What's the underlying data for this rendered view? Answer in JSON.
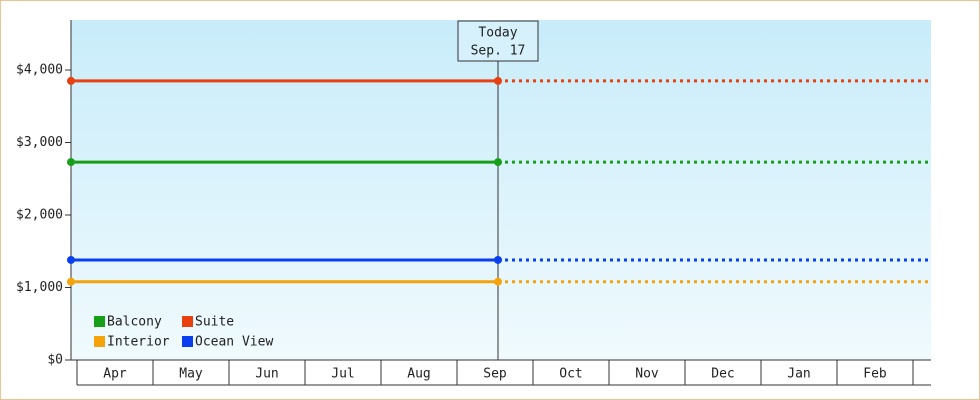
{
  "chart_data": {
    "type": "line",
    "categories": [
      "Apr",
      "May",
      "Jun",
      "Jul",
      "Aug",
      "Sep",
      "Oct",
      "Nov",
      "Dec",
      "Jan",
      "Feb"
    ],
    "today": {
      "label": "Today",
      "date": "Sep. 17"
    },
    "series": [
      {
        "name": "Balcony",
        "color": "#17a017",
        "value": 2730
      },
      {
        "name": "Suite",
        "color": "#e8400f",
        "value": 3850
      },
      {
        "name": "Interior",
        "color": "#f5a30b",
        "value": 1080
      },
      {
        "name": "Ocean View",
        "color": "#0a3ff0",
        "value": 1380
      }
    ],
    "ylim": [
      0,
      4690
    ],
    "yticks": [
      {
        "value": 0,
        "label": "$0"
      },
      {
        "value": 1000,
        "label": "$1,000"
      },
      {
        "value": 2000,
        "label": "$2,000"
      },
      {
        "value": 3000,
        "label": "$3,000"
      },
      {
        "value": 4000,
        "label": "$4,000"
      }
    ],
    "legend": "lower left"
  }
}
